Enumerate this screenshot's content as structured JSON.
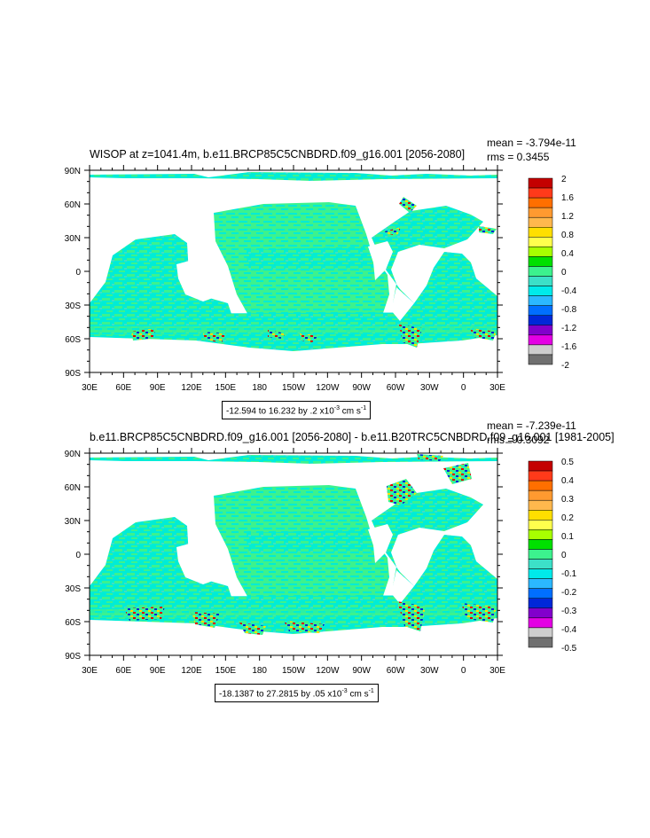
{
  "chart_data": [
    {
      "type": "heatmap",
      "title": "WISOP at z=1041.4m, b.e11.BRCP85C5CNBDRD.f09_g16.001 [2056-2080]",
      "mean_text": "mean = -3.794e-11",
      "rms_text": "rms = 0.3455",
      "x_ticks": [
        "30E",
        "60E",
        "90E",
        "120E",
        "150E",
        "180",
        "150W",
        "120W",
        "90W",
        "60W",
        "30W",
        "0",
        "30E"
      ],
      "y_ticks": [
        "90N",
        "60N",
        "30N",
        "0",
        "30S",
        "60S",
        "90S"
      ],
      "colorbar_labels": [
        "2",
        "1.6",
        "1.2",
        "0.8",
        "0.4",
        "0",
        "-0.4",
        "-0.8",
        "-1.2",
        "-1.6",
        "-2"
      ],
      "colorbar_colors": [
        "#c40000",
        "#ff3a1a",
        "#ff6f00",
        "#ff9a30",
        "#ffb84d",
        "#ffdf00",
        "#ffff4d",
        "#a8ff00",
        "#00e000",
        "#3cf28e",
        "#3ce0c8",
        "#00eaea",
        "#2bb8ff",
        "#006fff",
        "#0028d8",
        "#8200cc",
        "#e400e4",
        "#cdcdcd",
        "#707070"
      ],
      "range_text": "-12.594 to 16.232 by .2 x10",
      "range_exp": "-3",
      "range_unit": " cm s",
      "range_unit_exp": "-1"
    },
    {
      "type": "heatmap",
      "title": "b.e11.BRCP85C5CNBDRD.f09_g16.001 [2056-2080] - b.e11.B20TRC5CNBDRD.f09_g16.001 [1981-2005]",
      "mean_text": "mean = -7.239e-11",
      "rms_text": "rms = 0.3092",
      "x_ticks": [
        "30E",
        "60E",
        "90E",
        "120E",
        "150E",
        "180",
        "150W",
        "120W",
        "90W",
        "60W",
        "30W",
        "0",
        "30E"
      ],
      "y_ticks": [
        "90N",
        "60N",
        "30N",
        "0",
        "30S",
        "60S",
        "90S"
      ],
      "colorbar_labels": [
        "0.5",
        "0.4",
        "0.3",
        "0.2",
        "0.1",
        "0",
        "-0.1",
        "-0.2",
        "-0.3",
        "-0.4",
        "-0.5"
      ],
      "colorbar_colors": [
        "#c40000",
        "#ff3a1a",
        "#ff6f00",
        "#ff9a30",
        "#ffb84d",
        "#ffdf00",
        "#ffff4d",
        "#a8ff00",
        "#00e000",
        "#3cf28e",
        "#3ce0c8",
        "#00eaea",
        "#2bb8ff",
        "#006fff",
        "#0028d8",
        "#8200cc",
        "#e400e4",
        "#cdcdcd",
        "#707070"
      ],
      "range_text": "-18.1387 to 27.2815 by .05 x10",
      "range_exp": "-3",
      "range_unit": " cm s",
      "range_unit_exp": "-1"
    }
  ]
}
